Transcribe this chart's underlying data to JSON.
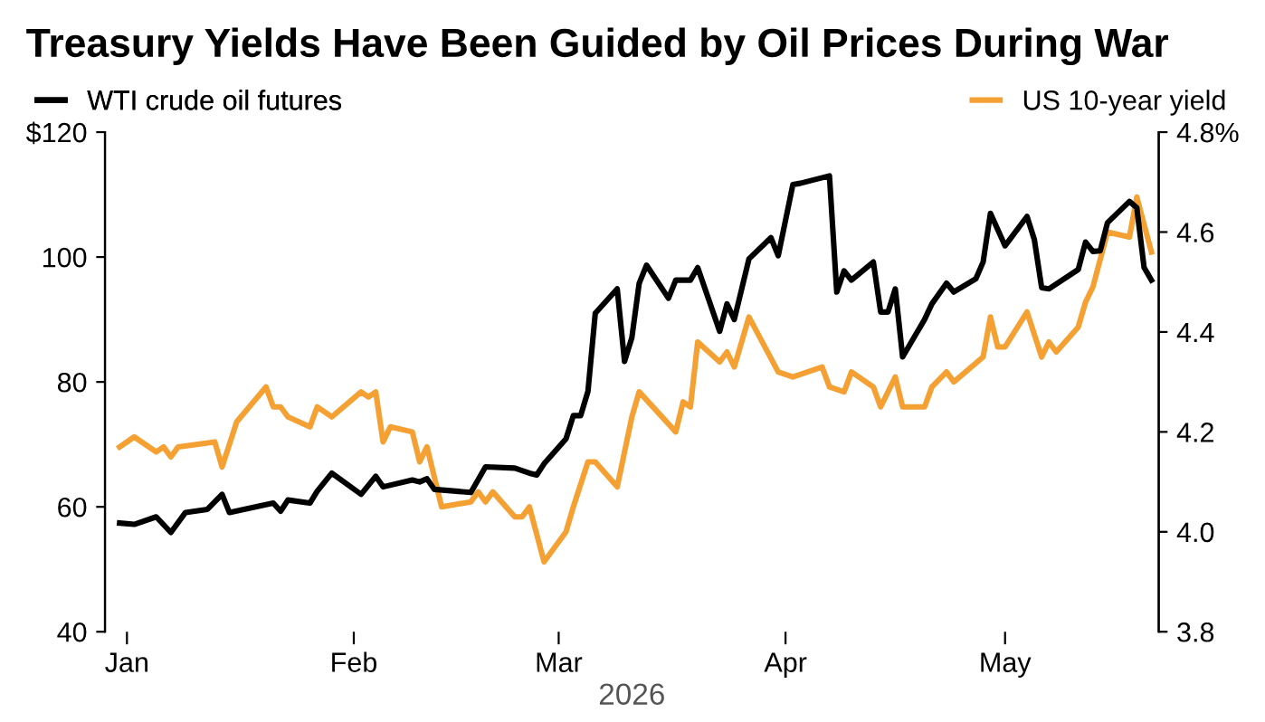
{
  "chart_data": {
    "type": "line",
    "title": "Treasury Yields Have Been Guided by Oil Prices During War",
    "xlabel": "2026",
    "legend": "top",
    "grid": false,
    "line_style": "solid",
    "marker": "none",
    "xlim": [
      "2025-12-29",
      "2026-05-22"
    ],
    "xticks": [
      {
        "value": "2026-01-01",
        "label": "Jan"
      },
      {
        "value": "2026-02-01",
        "label": "Feb"
      },
      {
        "value": "2026-03-01",
        "label": "Mar"
      },
      {
        "value": "2026-04-01",
        "label": "Apr"
      },
      {
        "value": "2026-05-01",
        "label": "May"
      }
    ],
    "ylim": [
      40,
      120
    ],
    "yticks": [
      40,
      60,
      80,
      100,
      {
        "value": 120,
        "label": "$120"
      }
    ],
    "y2lim": [
      3.8,
      4.8
    ],
    "y2ticks": [
      {
        "value": 3.8,
        "label": "3.8"
      },
      {
        "value": 4.0,
        "label": "4.0"
      },
      {
        "value": 4.2,
        "label": "4.2"
      },
      {
        "value": 4.4,
        "label": "4.4"
      },
      {
        "value": 4.6,
        "label": "4.6"
      },
      {
        "value": 4.8,
        "label": "4.8%"
      }
    ],
    "series": [
      {
        "name": "WTI crude oil futures",
        "color": "#000000",
        "x": [
          "2025-12-31",
          "2026-01-02",
          "2026-01-05",
          "2026-01-07",
          "2026-01-09",
          "2026-01-12",
          "2026-01-14",
          "2026-01-15",
          "2026-01-21",
          "2026-01-22",
          "2026-01-23",
          "2026-01-26",
          "2026-01-27",
          "2026-01-29",
          "2026-02-02",
          "2026-02-04",
          "2026-02-05",
          "2026-02-09",
          "2026-02-10",
          "2026-02-11",
          "2026-02-12",
          "2026-02-17",
          "2026-02-19",
          "2026-02-23",
          "2026-02-25",
          "2026-02-26",
          "2026-02-27",
          "2026-03-02",
          "2026-03-03",
          "2026-03-04",
          "2026-03-05",
          "2026-03-06",
          "2026-03-09",
          "2026-03-10",
          "2026-03-11",
          "2026-03-12",
          "2026-03-13",
          "2026-03-16",
          "2026-03-17",
          "2026-03-19",
          "2026-03-20",
          "2026-03-23",
          "2026-03-24",
          "2026-03-25",
          "2026-03-27",
          "2026-03-30",
          "2026-03-31",
          "2026-04-02",
          "2026-04-03",
          "2026-04-07",
          "2026-04-08",
          "2026-04-09",
          "2026-04-10",
          "2026-04-13",
          "2026-04-14",
          "2026-04-15",
          "2026-04-16",
          "2026-04-17",
          "2026-04-20",
          "2026-04-21",
          "2026-04-23",
          "2026-04-24",
          "2026-04-27",
          "2026-04-28",
          "2026-04-29",
          "2026-05-01",
          "2026-05-04",
          "2026-05-05",
          "2026-05-06",
          "2026-05-07",
          "2026-05-11",
          "2026-05-12",
          "2026-05-13",
          "2026-05-14",
          "2026-05-15",
          "2026-05-18",
          "2026-05-19",
          "2026-05-20",
          "2026-05-21"
        ],
        "values": [
          57.4,
          57.2,
          58.4,
          55.9,
          59.1,
          59.6,
          62.0,
          59.1,
          60.6,
          59.3,
          61.1,
          60.6,
          62.5,
          65.4,
          62.0,
          64.9,
          63.2,
          64.3,
          64.0,
          64.5,
          62.8,
          62.3,
          66.4,
          66.2,
          65.4,
          65.1,
          66.9,
          70.9,
          74.6,
          74.6,
          78.5,
          91.0,
          94.9,
          83.3,
          87.1,
          95.8,
          98.7,
          93.4,
          96.3,
          96.3,
          98.3,
          88.1,
          92.5,
          90.0,
          99.7,
          103.1,
          100.2,
          111.6,
          111.8,
          113.0,
          94.4,
          97.8,
          96.3,
          99.2,
          91.2,
          91.2,
          94.9,
          84.0,
          90.0,
          92.5,
          95.8,
          94.4,
          96.5,
          99.2,
          107.0,
          101.8,
          106.5,
          102.8,
          95.1,
          94.9,
          98.0,
          102.4,
          100.9,
          101.0,
          105.5,
          108.9,
          107.9,
          98.3,
          96.3
        ]
      },
      {
        "name": "US 10-year yield",
        "color": "#f5a033",
        "axis": "y2",
        "x": [
          "2025-12-31",
          "2026-01-02",
          "2026-01-05",
          "2026-01-06",
          "2026-01-07",
          "2026-01-08",
          "2026-01-13",
          "2026-01-14",
          "2026-01-16",
          "2026-01-20",
          "2026-01-21",
          "2026-01-22",
          "2026-01-23",
          "2026-01-26",
          "2026-01-27",
          "2026-01-29",
          "2026-02-02",
          "2026-02-03",
          "2026-02-04",
          "2026-02-05",
          "2026-02-06",
          "2026-02-09",
          "2026-02-10",
          "2026-02-11",
          "2026-02-13",
          "2026-02-17",
          "2026-02-18",
          "2026-02-19",
          "2026-02-20",
          "2026-02-23",
          "2026-02-24",
          "2026-02-25",
          "2026-02-27",
          "2026-03-02",
          "2026-03-03",
          "2026-03-05",
          "2026-03-06",
          "2026-03-09",
          "2026-03-11",
          "2026-03-12",
          "2026-03-17",
          "2026-03-18",
          "2026-03-19",
          "2026-03-20",
          "2026-03-23",
          "2026-03-24",
          "2026-03-25",
          "2026-03-27",
          "2026-03-31",
          "2026-04-02",
          "2026-04-06",
          "2026-04-07",
          "2026-04-09",
          "2026-04-10",
          "2026-04-13",
          "2026-04-14",
          "2026-04-16",
          "2026-04-17",
          "2026-04-20",
          "2026-04-21",
          "2026-04-23",
          "2026-04-24",
          "2026-04-28",
          "2026-04-29",
          "2026-04-30",
          "2026-05-01",
          "2026-05-04",
          "2026-05-06",
          "2026-05-07",
          "2026-05-08",
          "2026-05-11",
          "2026-05-12",
          "2026-05-13",
          "2026-05-15",
          "2026-05-18",
          "2026-05-19",
          "2026-05-21"
        ],
        "values": [
          4.17,
          4.19,
          4.16,
          4.17,
          4.15,
          4.17,
          4.18,
          4.13,
          4.22,
          4.29,
          4.25,
          4.25,
          4.23,
          4.21,
          4.25,
          4.23,
          4.28,
          4.27,
          4.28,
          4.18,
          4.21,
          4.2,
          4.14,
          4.17,
          4.05,
          4.06,
          4.08,
          4.06,
          4.08,
          4.03,
          4.03,
          4.05,
          3.94,
          4.0,
          4.05,
          4.14,
          4.14,
          4.09,
          4.23,
          4.28,
          4.2,
          4.26,
          4.25,
          4.38,
          4.34,
          4.36,
          4.33,
          4.43,
          4.32,
          4.31,
          4.33,
          4.29,
          4.28,
          4.32,
          4.29,
          4.25,
          4.31,
          4.25,
          4.25,
          4.29,
          4.32,
          4.3,
          4.35,
          4.43,
          4.37,
          4.37,
          4.44,
          4.35,
          4.38,
          4.36,
          4.41,
          4.46,
          4.49,
          4.6,
          4.59,
          4.67,
          4.56
        ]
      }
    ]
  }
}
